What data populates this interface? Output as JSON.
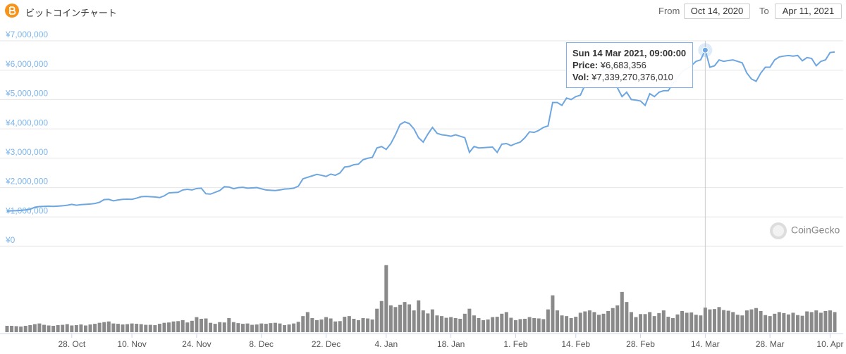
{
  "chart_data": {
    "type": "line",
    "title": "ビットコインチャート",
    "range": {
      "from_label": "From",
      "from": "Oct 14, 2020",
      "to_label": "To",
      "to": "Apr 11, 2021"
    },
    "watermark": "CoinGecko",
    "tooltip": {
      "title": "Sun 14 Mar 2021, 09:00:00",
      "rows": [
        {
          "label": "Price:",
          "value": "¥6,683,356"
        },
        {
          "label": "Vol:",
          "value": "¥7,339,270,376,010"
        }
      ],
      "x": "2021-03-14",
      "series": 0,
      "index": 151
    },
    "x": [
      "2020-10-14",
      "2020-10-15",
      "2020-10-16",
      "2020-10-17",
      "2020-10-18",
      "2020-10-19",
      "2020-10-20",
      "2020-10-21",
      "2020-10-22",
      "2020-10-23",
      "2020-10-24",
      "2020-10-25",
      "2020-10-26",
      "2020-10-27",
      "2020-10-28",
      "2020-10-29",
      "2020-10-30",
      "2020-10-31",
      "2020-11-01",
      "2020-11-02",
      "2020-11-03",
      "2020-11-04",
      "2020-11-05",
      "2020-11-06",
      "2020-11-07",
      "2020-11-08",
      "2020-11-09",
      "2020-11-10",
      "2020-11-11",
      "2020-11-12",
      "2020-11-13",
      "2020-11-14",
      "2020-11-15",
      "2020-11-16",
      "2020-11-17",
      "2020-11-18",
      "2020-11-19",
      "2020-11-20",
      "2020-11-21",
      "2020-11-22",
      "2020-11-23",
      "2020-11-24",
      "2020-11-25",
      "2020-11-26",
      "2020-11-27",
      "2020-11-28",
      "2020-11-29",
      "2020-11-30",
      "2020-12-01",
      "2020-12-02",
      "2020-12-03",
      "2020-12-04",
      "2020-12-05",
      "2020-12-06",
      "2020-12-07",
      "2020-12-08",
      "2020-12-09",
      "2020-12-10",
      "2020-12-11",
      "2020-12-12",
      "2020-12-13",
      "2020-12-14",
      "2020-12-15",
      "2020-12-16",
      "2020-12-17",
      "2020-12-18",
      "2020-12-19",
      "2020-12-20",
      "2020-12-21",
      "2020-12-22",
      "2020-12-23",
      "2020-12-24",
      "2020-12-25",
      "2020-12-26",
      "2020-12-27",
      "2020-12-28",
      "2020-12-29",
      "2020-12-30",
      "2020-12-31",
      "2021-01-01",
      "2021-01-02",
      "2021-01-03",
      "2021-01-04",
      "2021-01-05",
      "2021-01-06",
      "2021-01-07",
      "2021-01-08",
      "2021-01-09",
      "2021-01-10",
      "2021-01-11",
      "2021-01-12",
      "2021-01-13",
      "2021-01-14",
      "2021-01-15",
      "2021-01-16",
      "2021-01-17",
      "2021-01-18",
      "2021-01-19",
      "2021-01-20",
      "2021-01-21",
      "2021-01-22",
      "2021-01-23",
      "2021-01-24",
      "2021-01-25",
      "2021-01-26",
      "2021-01-27",
      "2021-01-28",
      "2021-01-29",
      "2021-01-30",
      "2021-01-31",
      "2021-02-01",
      "2021-02-02",
      "2021-02-03",
      "2021-02-04",
      "2021-02-05",
      "2021-02-06",
      "2021-02-07",
      "2021-02-08",
      "2021-02-09",
      "2021-02-10",
      "2021-02-11",
      "2021-02-12",
      "2021-02-13",
      "2021-02-14",
      "2021-02-15",
      "2021-02-16",
      "2021-02-17",
      "2021-02-18",
      "2021-02-19",
      "2021-02-20",
      "2021-02-21",
      "2021-02-22",
      "2021-02-23",
      "2021-02-24",
      "2021-02-25",
      "2021-02-26",
      "2021-02-27",
      "2021-02-28",
      "2021-03-01",
      "2021-03-02",
      "2021-03-03",
      "2021-03-04",
      "2021-03-05",
      "2021-03-06",
      "2021-03-07",
      "2021-03-08",
      "2021-03-09",
      "2021-03-10",
      "2021-03-11",
      "2021-03-12",
      "2021-03-13",
      "2021-03-14",
      "2021-03-15",
      "2021-03-16",
      "2021-03-17",
      "2021-03-18",
      "2021-03-19",
      "2021-03-20",
      "2021-03-21",
      "2021-03-22",
      "2021-03-23",
      "2021-03-24",
      "2021-03-25",
      "2021-03-26",
      "2021-03-27",
      "2021-03-28",
      "2021-03-29",
      "2021-03-30",
      "2021-03-31",
      "2021-04-01",
      "2021-04-02",
      "2021-04-03",
      "2021-04-04",
      "2021-04-05",
      "2021-04-06",
      "2021-04-07",
      "2021-04-08",
      "2021-04-09",
      "2021-04-10",
      "2021-04-11"
    ],
    "series": [
      {
        "color": "#6ea6e0",
        "values": [
          1200000,
          1210000,
          1215000,
          1225000,
          1240000,
          1265000,
          1330000,
          1355000,
          1360000,
          1365000,
          1360000,
          1370000,
          1380000,
          1400000,
          1430000,
          1400000,
          1420000,
          1430000,
          1440000,
          1460000,
          1500000,
          1590000,
          1600000,
          1550000,
          1580000,
          1600000,
          1605000,
          1600000,
          1640000,
          1690000,
          1700000,
          1690000,
          1680000,
          1660000,
          1720000,
          1820000,
          1830000,
          1840000,
          1920000,
          1940000,
          1920000,
          1970000,
          1980000,
          1790000,
          1780000,
          1840000,
          1900000,
          2030000,
          2020000,
          1960000,
          2000000,
          2010000,
          1980000,
          1990000,
          2000000,
          1960000,
          1920000,
          1910000,
          1900000,
          1920000,
          1950000,
          1960000,
          1980000,
          2050000,
          2300000,
          2350000,
          2400000,
          2450000,
          2420000,
          2380000,
          2460000,
          2420000,
          2500000,
          2700000,
          2720000,
          2780000,
          2800000,
          2950000,
          3000000,
          3030000,
          3350000,
          3400000,
          3300000,
          3500000,
          3800000,
          4150000,
          4240000,
          4180000,
          4000000,
          3700000,
          3550000,
          3820000,
          4050000,
          3850000,
          3800000,
          3780000,
          3750000,
          3800000,
          3750000,
          3700000,
          3200000,
          3400000,
          3350000,
          3360000,
          3370000,
          3380000,
          3200000,
          3480000,
          3500000,
          3430000,
          3500000,
          3550000,
          3700000,
          3900000,
          3880000,
          3950000,
          4050000,
          4100000,
          4900000,
          4900000,
          4800000,
          5050000,
          5000000,
          5100000,
          5150000,
          5500000,
          5550000,
          5750000,
          5900000,
          6000000,
          6050000,
          5800000,
          5400000,
          5100000,
          5250000,
          5000000,
          4980000,
          4950000,
          4800000,
          5200000,
          5100000,
          5250000,
          5300000,
          5300000,
          5550000,
          5750000,
          5950000,
          6050000,
          6150000,
          6300000,
          6350000,
          6683356,
          6100000,
          6150000,
          6350000,
          6300000,
          6330000,
          6350000,
          6300000,
          6250000,
          5900000,
          5700000,
          5620000,
          5900000,
          6100000,
          6100000,
          6350000,
          6450000,
          6480000,
          6500000,
          6480000,
          6500000,
          6320000,
          6430000,
          6400000,
          6150000,
          6300000,
          6350000,
          6600000,
          6620000
        ]
      },
      {
        "type": "bar",
        "axis": "y2",
        "color": "#8a8a8a",
        "values": [
          1900000000000,
          1900000000000,
          1800000000000,
          1700000000000,
          1900000000000,
          2100000000000,
          2400000000000,
          2600000000000,
          2200000000000,
          2000000000000,
          1900000000000,
          2100000000000,
          2200000000000,
          2400000000000,
          2000000000000,
          2100000000000,
          2300000000000,
          2000000000000,
          2300000000000,
          2500000000000,
          2800000000000,
          3000000000000,
          3200000000000,
          2600000000000,
          2500000000000,
          2300000000000,
          2400000000000,
          2600000000000,
          2500000000000,
          2400000000000,
          2200000000000,
          2200000000000,
          2100000000000,
          2500000000000,
          2800000000000,
          2900000000000,
          3200000000000,
          3300000000000,
          3600000000000,
          2900000000000,
          3400000000000,
          4500000000000,
          4000000000000,
          4100000000000,
          2800000000000,
          2500000000000,
          3000000000000,
          2900000000000,
          4200000000000,
          3000000000000,
          2700000000000,
          2500000000000,
          2600000000000,
          2200000000000,
          2300000000000,
          2600000000000,
          2500000000000,
          2700000000000,
          2800000000000,
          2600000000000,
          2100000000000,
          2300000000000,
          2600000000000,
          3100000000000,
          4800000000000,
          6000000000000,
          4200000000000,
          3600000000000,
          3800000000000,
          4500000000000,
          4100000000000,
          3200000000000,
          3300000000000,
          4600000000000,
          4800000000000,
          4000000000000,
          3600000000000,
          4200000000000,
          4100000000000,
          3800000000000,
          7000000000000,
          9300000000000,
          20000000000000,
          8000000000000,
          7500000000000,
          8200000000000,
          9000000000000,
          8300000000000,
          6500000000000,
          9500000000000,
          6500000000000,
          5600000000000,
          6800000000000,
          5000000000000,
          4800000000000,
          4300000000000,
          4500000000000,
          4200000000000,
          4000000000000,
          5500000000000,
          7000000000000,
          5000000000000,
          4200000000000,
          3600000000000,
          3800000000000,
          4500000000000,
          4600000000000,
          5500000000000,
          6000000000000,
          4300000000000,
          3600000000000,
          3900000000000,
          4000000000000,
          4500000000000,
          4200000000000,
          4100000000000,
          3900000000000,
          6800000000000,
          11000000000000,
          6500000000000,
          5000000000000,
          4800000000000,
          4200000000000,
          4600000000000,
          5800000000000,
          6200000000000,
          6500000000000,
          6000000000000,
          5200000000000,
          5500000000000,
          6300000000000,
          7200000000000,
          8000000000000,
          12000000000000,
          9000000000000,
          6000000000000,
          4500000000000,
          5400000000000,
          5400000000000,
          6000000000000,
          4800000000000,
          5700000000000,
          6500000000000,
          4600000000000,
          4200000000000,
          5300000000000,
          6300000000000,
          5800000000000,
          5900000000000,
          5200000000000,
          5000000000000,
          7339270376010,
          6800000000000,
          6900000000000,
          7500000000000,
          6600000000000,
          6400000000000,
          6000000000000,
          5200000000000,
          5000000000000,
          6500000000000,
          6800000000000,
          7200000000000,
          6300000000000,
          5100000000000,
          4800000000000,
          5500000000000,
          6000000000000,
          5700000000000,
          5300000000000,
          5800000000000,
          5100000000000,
          4900000000000,
          6200000000000,
          6000000000000,
          6500000000000,
          5800000000000,
          6300000000000,
          6500000000000,
          6000000000000
        ]
      }
    ],
    "xlim": [
      "2020-10-14",
      "2021-04-11"
    ],
    "xticks": [
      {
        "value": "2020-10-28",
        "label": "28. Oct"
      },
      {
        "value": "2020-11-10",
        "label": "10. Nov"
      },
      {
        "value": "2020-11-24",
        "label": "24. Nov"
      },
      {
        "value": "2020-12-08",
        "label": "8. Dec"
      },
      {
        "value": "2020-12-22",
        "label": "22. Dec"
      },
      {
        "value": "2021-01-04",
        "label": "4. Jan"
      },
      {
        "value": "2021-01-18",
        "label": "18. Jan"
      },
      {
        "value": "2021-02-01",
        "label": "1. Feb"
      },
      {
        "value": "2021-02-14",
        "label": "14. Feb"
      },
      {
        "value": "2021-02-28",
        "label": "28. Feb"
      },
      {
        "value": "2021-03-14",
        "label": "14. Mar"
      },
      {
        "value": "2021-03-28",
        "label": "28. Mar"
      },
      {
        "value": "2021-04-10",
        "label": "10. Apr"
      }
    ],
    "ylim": [
      0,
      7000000
    ],
    "yticks": [
      {
        "value": 0,
        "label": "¥0"
      },
      {
        "value": 1000000,
        "label": "¥1,000,000"
      },
      {
        "value": 2000000,
        "label": "¥2,000,000"
      },
      {
        "value": 3000000,
        "label": "¥3,000,000"
      },
      {
        "value": 4000000,
        "label": "¥4,000,000"
      },
      {
        "value": 5000000,
        "label": "¥5,000,000"
      },
      {
        "value": 6000000,
        "label": "¥6,000,000"
      },
      {
        "value": 7000000,
        "label": "¥7,000,000"
      }
    ],
    "y2lim": [
      0,
      21000000000000
    ],
    "grid": true
  }
}
